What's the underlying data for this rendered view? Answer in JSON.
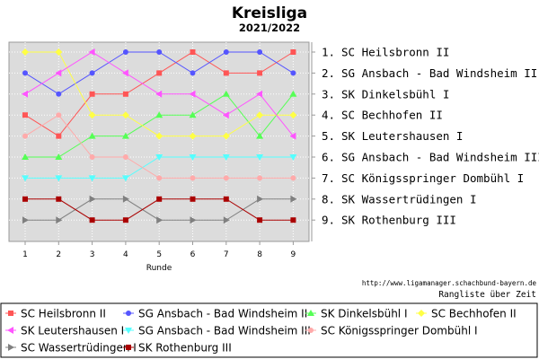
{
  "chart_data": {
    "type": "line",
    "title": "Kreisliga",
    "subtitle": "2021/2022",
    "xlabel": "Runde",
    "ylabel": "",
    "x": [
      1,
      2,
      3,
      4,
      5,
      6,
      7,
      8,
      9
    ],
    "ylim": [
      1,
      9
    ],
    "y_inverted": true,
    "grid": true,
    "legend_position": "bottom",
    "source": "http://www.ligamanager.schachbund-bayern.de",
    "note": "Rangliste über Zeit",
    "standings": [
      {
        "rank": "1.",
        "team": "SC Heilsbronn II"
      },
      {
        "rank": "2.",
        "team": "SG Ansbach - Bad Windsheim II"
      },
      {
        "rank": "3.",
        "team": "SK Dinkelsbühl I"
      },
      {
        "rank": "4.",
        "team": "SC Bechhofen II"
      },
      {
        "rank": "5.",
        "team": "SK Leutershausen I"
      },
      {
        "rank": "6.",
        "team": "SG Ansbach - Bad Windsheim III"
      },
      {
        "rank": "7.",
        "team": "SC Königsspringer Dombühl I"
      },
      {
        "rank": "8.",
        "team": "SK Wassertrüdingen I"
      },
      {
        "rank": "9.",
        "team": "SK Rothenburg III"
      }
    ],
    "series": [
      {
        "name": "SC Heilsbronn II",
        "color": "#ff5555",
        "marker": "square",
        "values": [
          4,
          5,
          3,
          3,
          2,
          1,
          2,
          2,
          1
        ]
      },
      {
        "name": "SG Ansbach - Bad Windsheim II",
        "color": "#5555ff",
        "marker": "circle",
        "values": [
          2,
          3,
          2,
          1,
          1,
          2,
          1,
          1,
          2
        ]
      },
      {
        "name": "SK Dinkelsbühl I",
        "color": "#55ff55",
        "marker": "triangle-up",
        "values": [
          6,
          6,
          5,
          5,
          4,
          4,
          3,
          5,
          3
        ]
      },
      {
        "name": "SC Bechhofen II",
        "color": "#ffff44",
        "marker": "diamond",
        "values": [
          1,
          1,
          4,
          4,
          5,
          5,
          5,
          4,
          4
        ]
      },
      {
        "name": "SK Leutershausen I",
        "color": "#ff55ff",
        "marker": "triangle-left",
        "values": [
          3,
          2,
          1,
          2,
          3,
          3,
          4,
          3,
          5
        ]
      },
      {
        "name": "SG Ansbach - Bad Windsheim III",
        "color": "#55ffff",
        "marker": "triangle-down",
        "values": [
          7,
          7,
          7,
          7,
          6,
          6,
          6,
          6,
          6
        ]
      },
      {
        "name": "SC Königsspringer Dombühl I",
        "color": "#ffaaaa",
        "marker": "circle",
        "values": [
          5,
          4,
          6,
          6,
          7,
          7,
          7,
          7,
          7
        ]
      },
      {
        "name": "SC Wassertrüdingen I",
        "color": "#808080",
        "marker": "triangle-right",
        "values": [
          9,
          9,
          8,
          8,
          9,
          9,
          9,
          8,
          8
        ]
      },
      {
        "name": "SK Rothenburg III",
        "color": "#aa0000",
        "marker": "square",
        "values": [
          8,
          8,
          9,
          9,
          8,
          8,
          8,
          9,
          9
        ]
      }
    ]
  }
}
